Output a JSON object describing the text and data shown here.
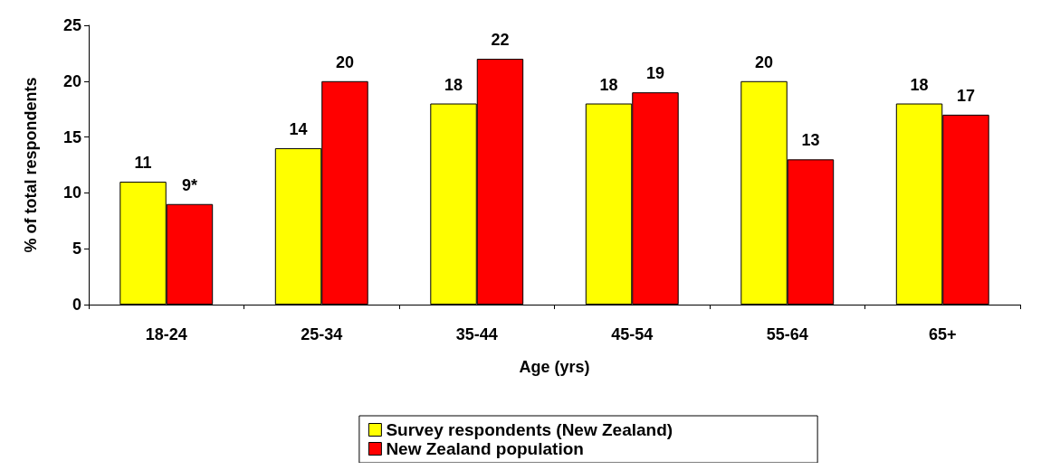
{
  "chart_data": {
    "type": "bar",
    "xlabel": "Age (yrs)",
    "ylabel": "% of total respondents",
    "categories": [
      "18-24",
      "25-34",
      "35-44",
      "45-54",
      "55-64",
      "65+"
    ],
    "series": [
      {
        "name": "Survey respondents (New Zealand)",
        "color": "#ffff00",
        "values": [
          11,
          14,
          18,
          18,
          20,
          18
        ],
        "value_labels": [
          "11",
          "14",
          "18",
          "18",
          "20",
          "18"
        ]
      },
      {
        "name": "New Zealand population",
        "color": "#ff0000",
        "values": [
          9,
          20,
          22,
          19,
          13,
          17
        ],
        "value_labels": [
          "9*",
          "20",
          "22",
          "19",
          "13",
          "17"
        ]
      }
    ],
    "ylim": [
      0,
      25
    ],
    "yticks": [
      0,
      5,
      10,
      15,
      20,
      25
    ],
    "grid": false,
    "legend": "bottom"
  }
}
